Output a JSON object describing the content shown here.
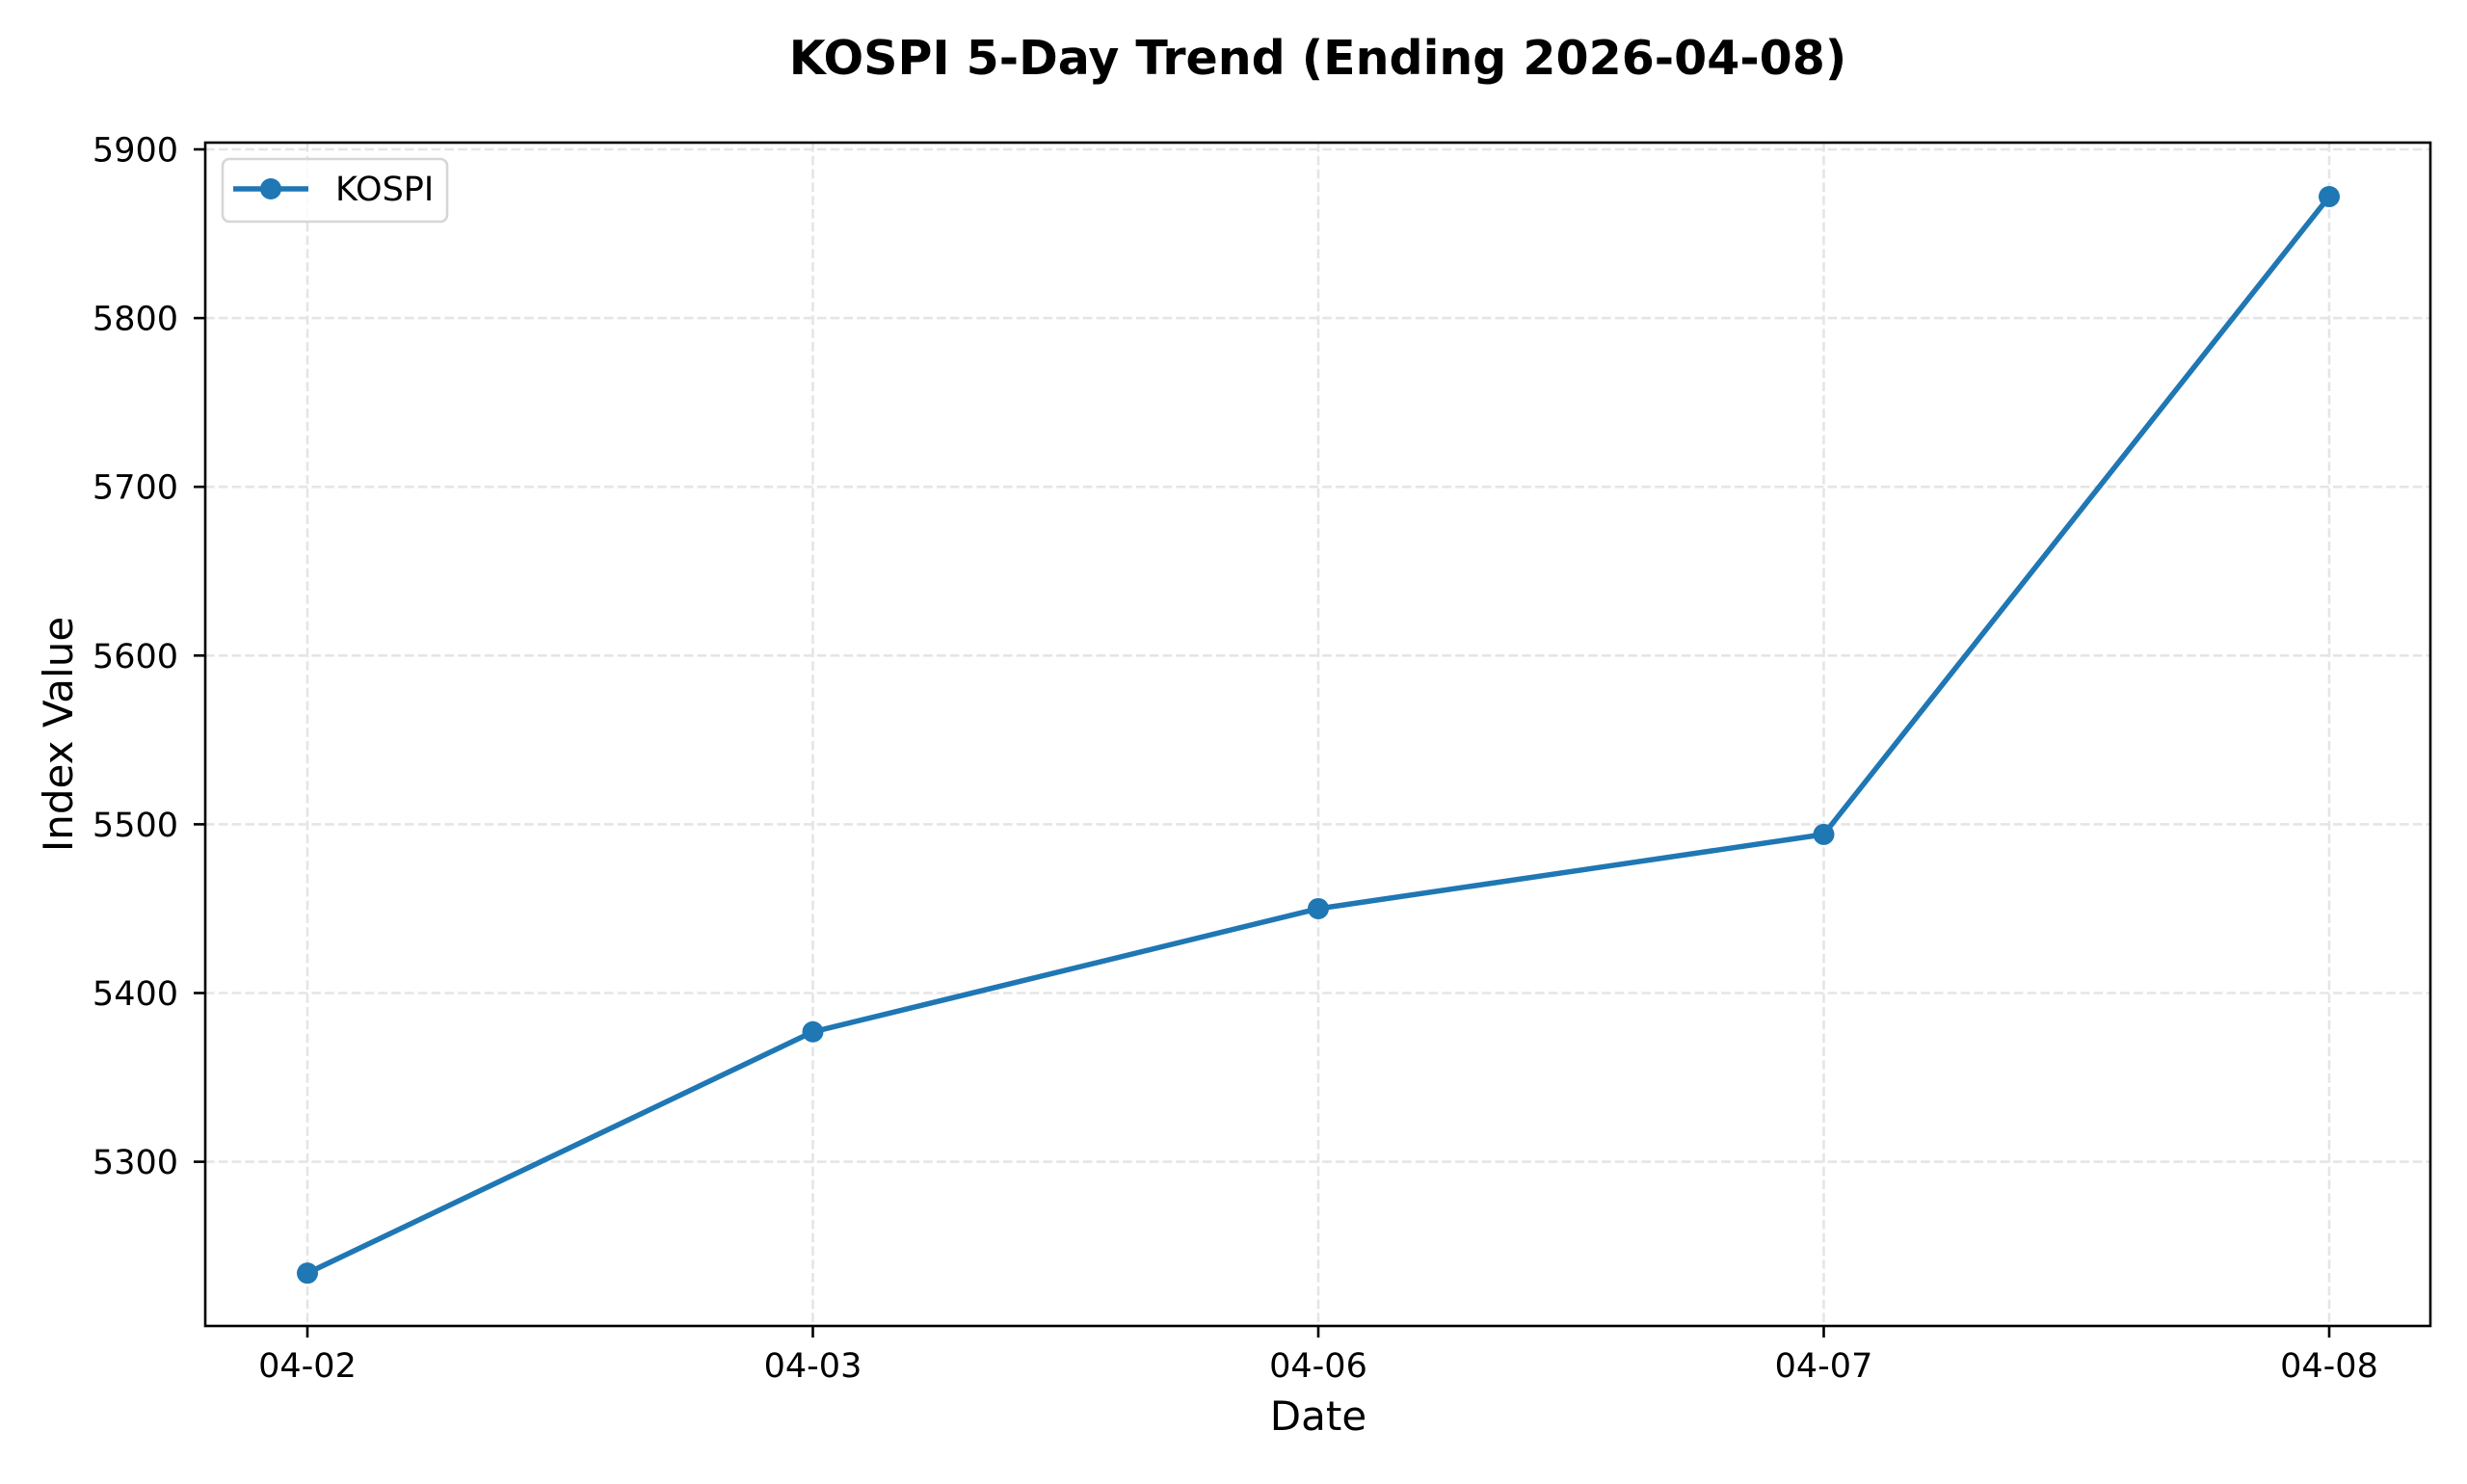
{
  "chart_data": {
    "type": "line",
    "title": "KOSPI 5-Day Trend (Ending 2026-04-08)",
    "xlabel": "Date",
    "ylabel": "Index Value",
    "categories": [
      "04-02",
      "04-03",
      "04-06",
      "04-07",
      "04-08"
    ],
    "series": [
      {
        "name": "KOSPI",
        "color": "#1f77b4",
        "marker": "circle",
        "values": [
          5234,
          5377,
          5450,
          5494,
          5872
        ]
      }
    ],
    "yticks": [
      5300,
      5400,
      5500,
      5600,
      5700,
      5800,
      5900
    ],
    "ylim": [
      5203,
      5904
    ],
    "grid": true,
    "grid_style": "dashed",
    "legend_position": "upper left"
  },
  "colors": {
    "series": "#1f77b4",
    "grid": "#e5e5e5",
    "axis": "#000000",
    "legend_border": "#d6d6d6"
  }
}
